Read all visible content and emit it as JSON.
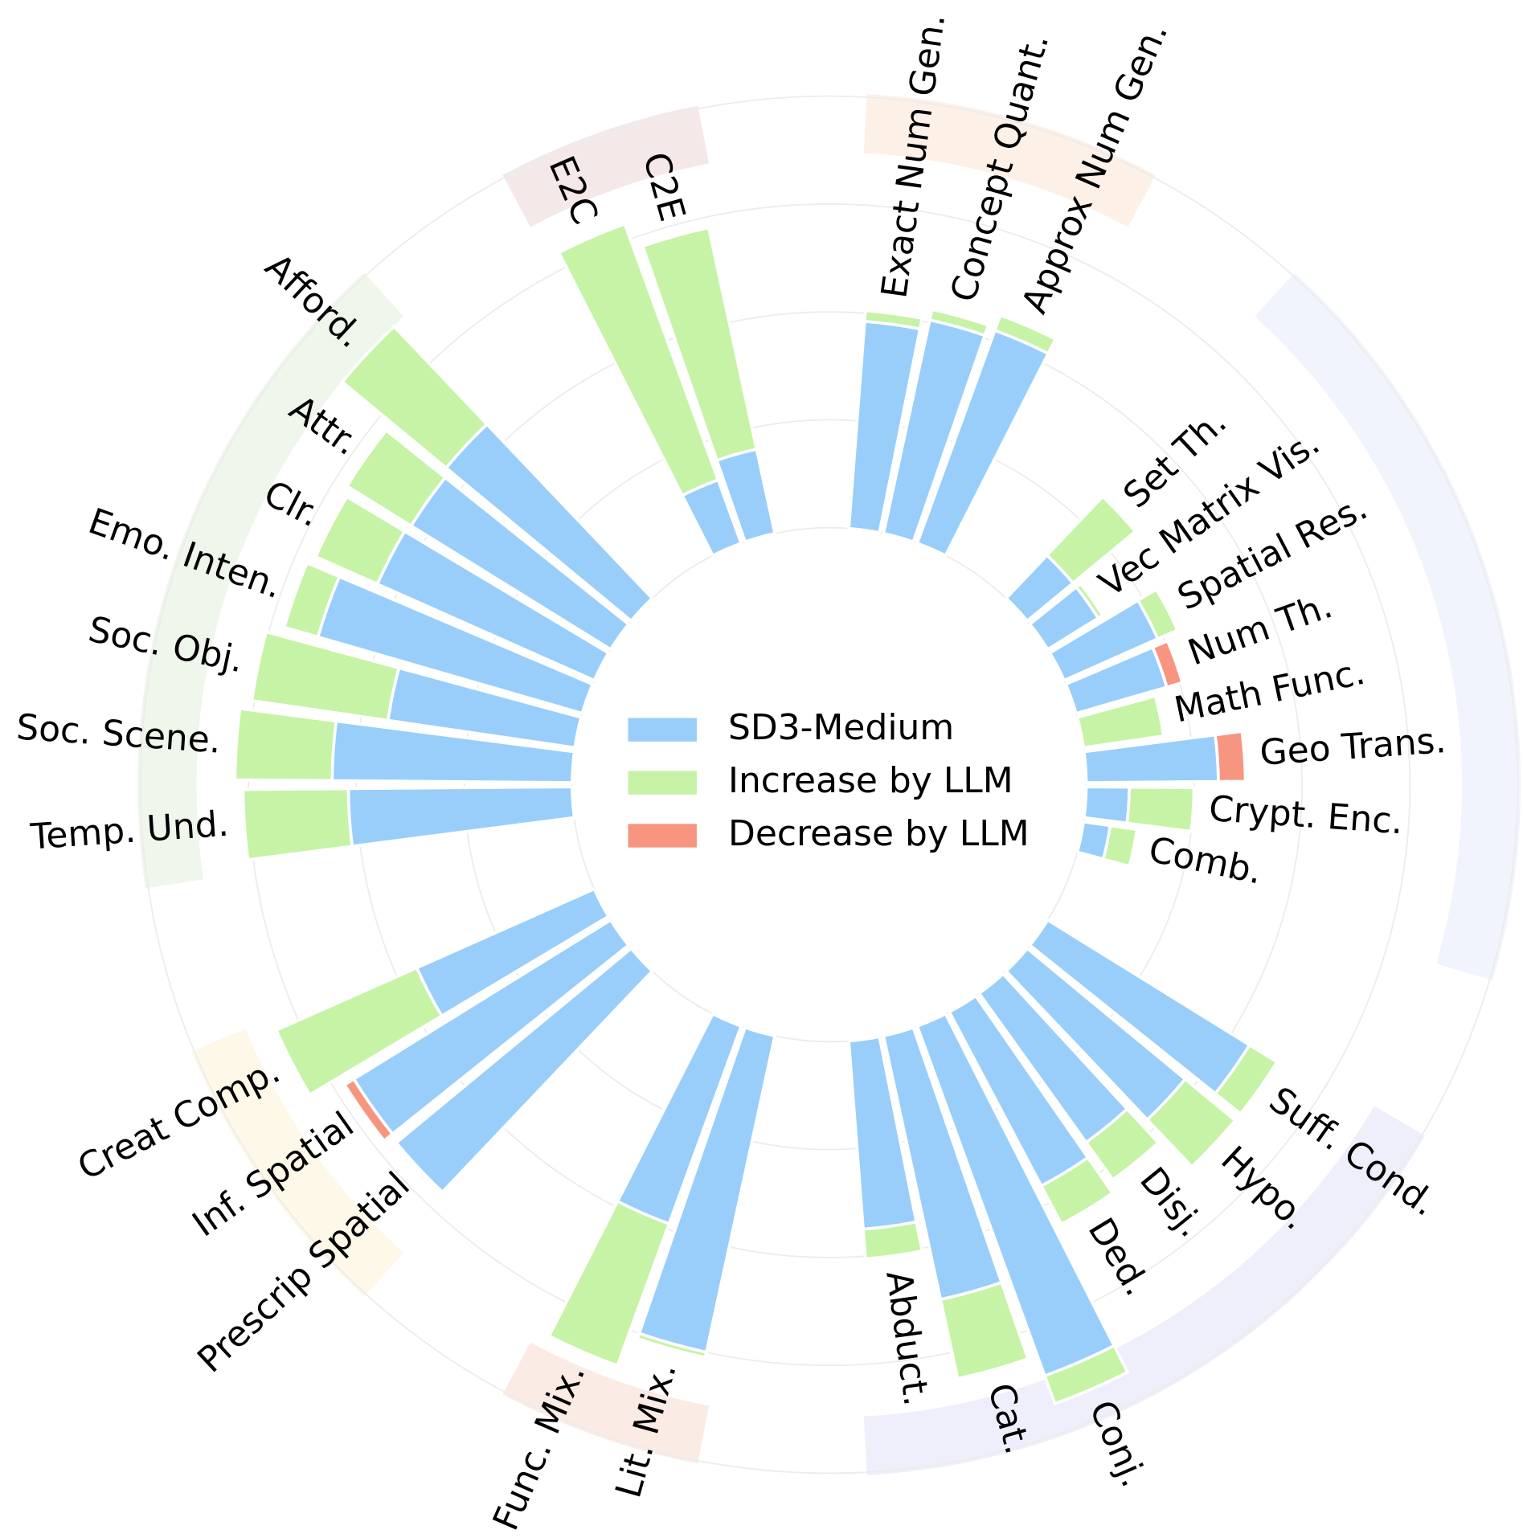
{
  "chart_data": {
    "type": "radial-stacked-bar",
    "categories": [
      "Exact Num Gen.",
      "Concept Quant.",
      "Approx Num Gen.",
      "Set Th.",
      "Vec Matrix Vis.",
      "Spatial Res.",
      "Num Th.",
      "Math Func.",
      "Geo Trans.",
      "Crypt. Enc.",
      "Comb.",
      "Suff. Cond.",
      "Hypo.",
      "Disj.",
      "Ded.",
      "Conj.",
      "Cat.",
      "Abduct.",
      "Lit. Mix.",
      "Func. Mix.",
      "Prescrip Spatial",
      "Inf. Spatial",
      "Creat Comp.",
      "Temp. Und.",
      "Soc. Scene.",
      "Soc. Obj.",
      "Emo. Inten.",
      "Clr.",
      "Attr.",
      "Afford.",
      "E2C",
      "C2E"
    ],
    "series": [
      {
        "name": "SD3-Medium",
        "color": "#99cefa",
        "values": [
          0.385,
          0.405,
          0.42,
          0.11,
          0.11,
          0.19,
          0.175,
          0,
          0.245,
          0.08,
          0.05,
          0.44,
          0.38,
          0.34,
          0.365,
          0.69,
          0.5,
          0.35,
          0.6,
          0.39,
          0.565,
          0.56,
          0.36,
          0.415,
          0.445,
          0.35,
          0.51,
          0.44,
          0.435,
          0.445,
          0.125,
          0.16
        ]
      },
      {
        "name": "Increase by LLM",
        "color": "#c6f3a6",
        "values": [
          0.02,
          0.02,
          0.03,
          0.15,
          0.01,
          0.04,
          0,
          0.15,
          0,
          0.12,
          0.05,
          0.06,
          0.12,
          0.085,
          0.08,
          0.055,
          0.15,
          0.055,
          0.01,
          0.28,
          0,
          0,
          0.285,
          0.195,
          0.18,
          0.255,
          0.065,
          0.125,
          0.14,
          0.25,
          0.505,
          0.42
        ]
      },
      {
        "name": "Decrease by LLM",
        "color": "#f79580",
        "values": [
          0,
          0,
          0,
          0,
          0,
          0,
          0.03,
          0,
          0.05,
          0,
          0,
          0,
          0,
          0,
          0,
          0,
          0,
          0,
          0,
          0,
          0.005,
          0.02,
          0,
          0,
          0,
          0,
          0,
          0,
          0,
          0,
          0,
          0
        ]
      }
    ],
    "ylim": [
      0,
      0.8
    ],
    "yticks": [
      0,
      0.2,
      0.4,
      0.6,
      0.8
    ],
    "grid": true,
    "legend": "center"
  }
}
